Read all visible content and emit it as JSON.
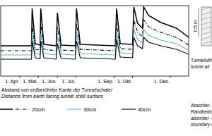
{
  "chart_data": {
    "type": "line",
    "x": [
      60,
      110,
      111,
      116,
      124,
      125,
      130,
      150,
      152,
      158,
      181,
      183,
      189,
      246,
      248,
      254,
      274,
      276,
      282,
      290,
      292,
      300,
      320,
      345,
      365
    ],
    "xlim": [
      60,
      365
    ],
    "xticks": [
      {
        "value": 91,
        "label": "1. Apr."
      },
      {
        "value": 121,
        "label": "1. Mai."
      },
      {
        "value": 152,
        "label": "1. Jun."
      },
      {
        "value": 182,
        "label": "1. Jul."
      },
      {
        "value": 244,
        "label": "1. Sep."
      },
      {
        "value": 274,
        "label": "1. Okt."
      },
      {
        "value": 335,
        "label": "1. Dez."
      }
    ],
    "ylim": [
      0,
      10
    ],
    "yticks": [],
    "tick_labels": "x",
    "grid": false,
    "legend_title": [
      "Abstand von erdberührter Kante der Tunnelschale/",
      "Distance from earth facing tunnel shell surface"
    ],
    "series": [
      {
        "name": null,
        "color": "#000000",
        "line_style": "solid",
        "values": [
          4.3,
          4.3,
          9.6,
          4.6,
          4.4,
          9.6,
          4.5,
          4.3,
          9.0,
          4.4,
          4.3,
          9.6,
          4.5,
          4.3,
          9.6,
          4.6,
          4.5,
          9.8,
          7.5,
          6.8,
          9.8,
          8.6,
          7.6,
          6.8,
          5.5
        ]
      },
      {
        "name": "20cm",
        "color": "#000000",
        "line_style": "dashdot",
        "values": [
          3.6,
          3.6,
          7.5,
          3.8,
          3.7,
          7.5,
          3.8,
          3.6,
          7.0,
          3.7,
          3.6,
          7.4,
          3.8,
          3.6,
          7.6,
          3.9,
          3.8,
          8.0,
          6.2,
          5.6,
          8.0,
          7.0,
          6.2,
          5.5,
          4.4
        ]
      },
      {
        "name": "30cm",
        "color": "#5ab4e0",
        "line_style": "solid",
        "values": [
          3.0,
          3.0,
          6.0,
          3.2,
          3.1,
          6.0,
          3.2,
          3.0,
          5.6,
          3.1,
          3.0,
          6.0,
          3.2,
          3.0,
          6.2,
          3.3,
          3.2,
          6.6,
          5.2,
          4.7,
          6.6,
          5.8,
          5.1,
          4.6,
          3.7
        ]
      },
      {
        "name": "40cm",
        "color": "#000000",
        "line_style": "solid",
        "values": [
          2.4,
          2.4,
          5.0,
          2.6,
          2.5,
          5.0,
          2.6,
          2.4,
          4.6,
          2.5,
          2.4,
          5.0,
          2.6,
          2.4,
          5.2,
          2.7,
          2.6,
          5.5,
          4.3,
          3.9,
          5.5,
          4.8,
          4.3,
          3.8,
          3.1
        ]
      }
    ],
    "annotations": [
      "t=5 m",
      "Tunnelluft/",
      "tunnel air",
      "Absorber- k",
      "Randbeding",
      "absorber - c",
      "boundary co"
    ]
  }
}
